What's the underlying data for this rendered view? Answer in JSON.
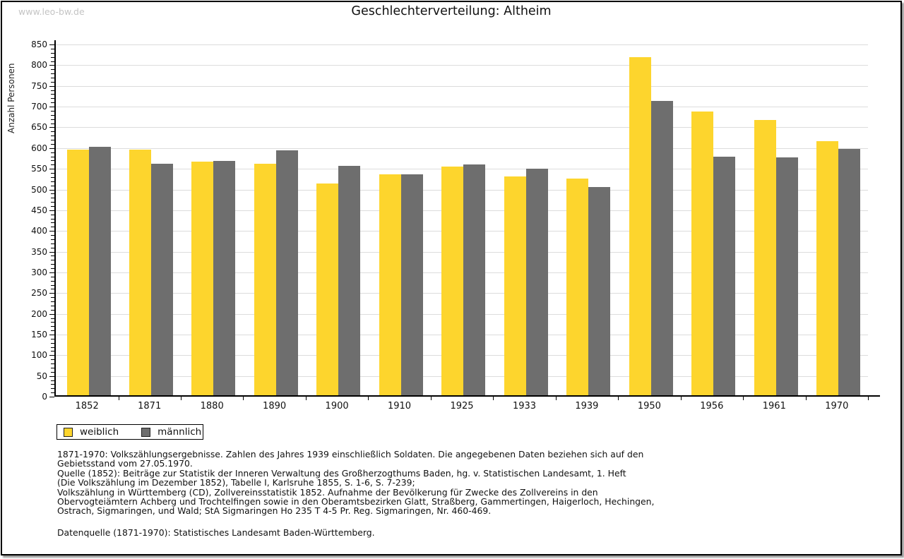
{
  "watermark": "www.leo-bw.de",
  "title": "Geschlechterverteilung:  Altheim",
  "colors": {
    "female_bar": "#FDD52D",
    "male_bar": "#6E6E6E",
    "gridline": "#DCDCDC",
    "axis": "#000000",
    "watermark_text": "#C4C4C4"
  },
  "chart_data": {
    "type": "bar",
    "title": "Geschlechterverteilung: Altheim",
    "ylabel": "Anzahl Personen",
    "xlabel": "",
    "ylim": [
      0,
      850
    ],
    "ytick_step": 50,
    "ytick_minor_step": 10,
    "grid": true,
    "legend_position": "bottom-left",
    "categories": [
      "1852",
      "1871",
      "1880",
      "1890",
      "1900",
      "1910",
      "1925",
      "1933",
      "1939",
      "1950",
      "1956",
      "1961",
      "1970"
    ],
    "series": [
      {
        "name": "weiblich",
        "color": "#FDD52D",
        "values": [
          596,
          596,
          567,
          562,
          515,
          536,
          555,
          532,
          527,
          820,
          689,
          667,
          616
        ]
      },
      {
        "name": "männlich",
        "color": "#6E6E6E",
        "values": [
          603,
          562,
          569,
          594,
          557,
          536,
          561,
          551,
          506,
          713,
          580,
          577,
          598
        ]
      }
    ]
  },
  "footer": {
    "lines": [
      "1871-1970: Volkszählungsergebnisse. Zahlen des Jahres 1939 einschließlich Soldaten. Die angegebenen Daten beziehen sich auf den",
      "Gebietsstand vom 27.05.1970.",
      "Quelle (1852): Beiträge zur Statistik der Inneren Verwaltung des Großherzogthums Baden, hg. v. Statistischen Landesamt, 1. Heft",
      "(Die Volkszählung im Dezember 1852), Tabelle I, Karlsruhe 1855, S. 1-6, S. 7-239;",
      "Volkszählung in Württemberg (CD), Zollvereinsstatistik 1852. Aufnahme der Bevölkerung für Zwecke des Zollvereins in den",
      "Obervogteiämtern Achberg und Trochtelfingen sowie in den Oberamtsbezirken Glatt, Straßberg, Gammertingen, Haigerloch, Hechingen,",
      "Ostrach, Sigmaringen, und Wald; StA Sigmaringen Ho 235 T 4-5 Pr. Reg. Sigmaringen, Nr. 460-469.",
      "",
      "Datenquelle (1871-1970): Statistisches Landesamt Baden-Württemberg."
    ]
  }
}
